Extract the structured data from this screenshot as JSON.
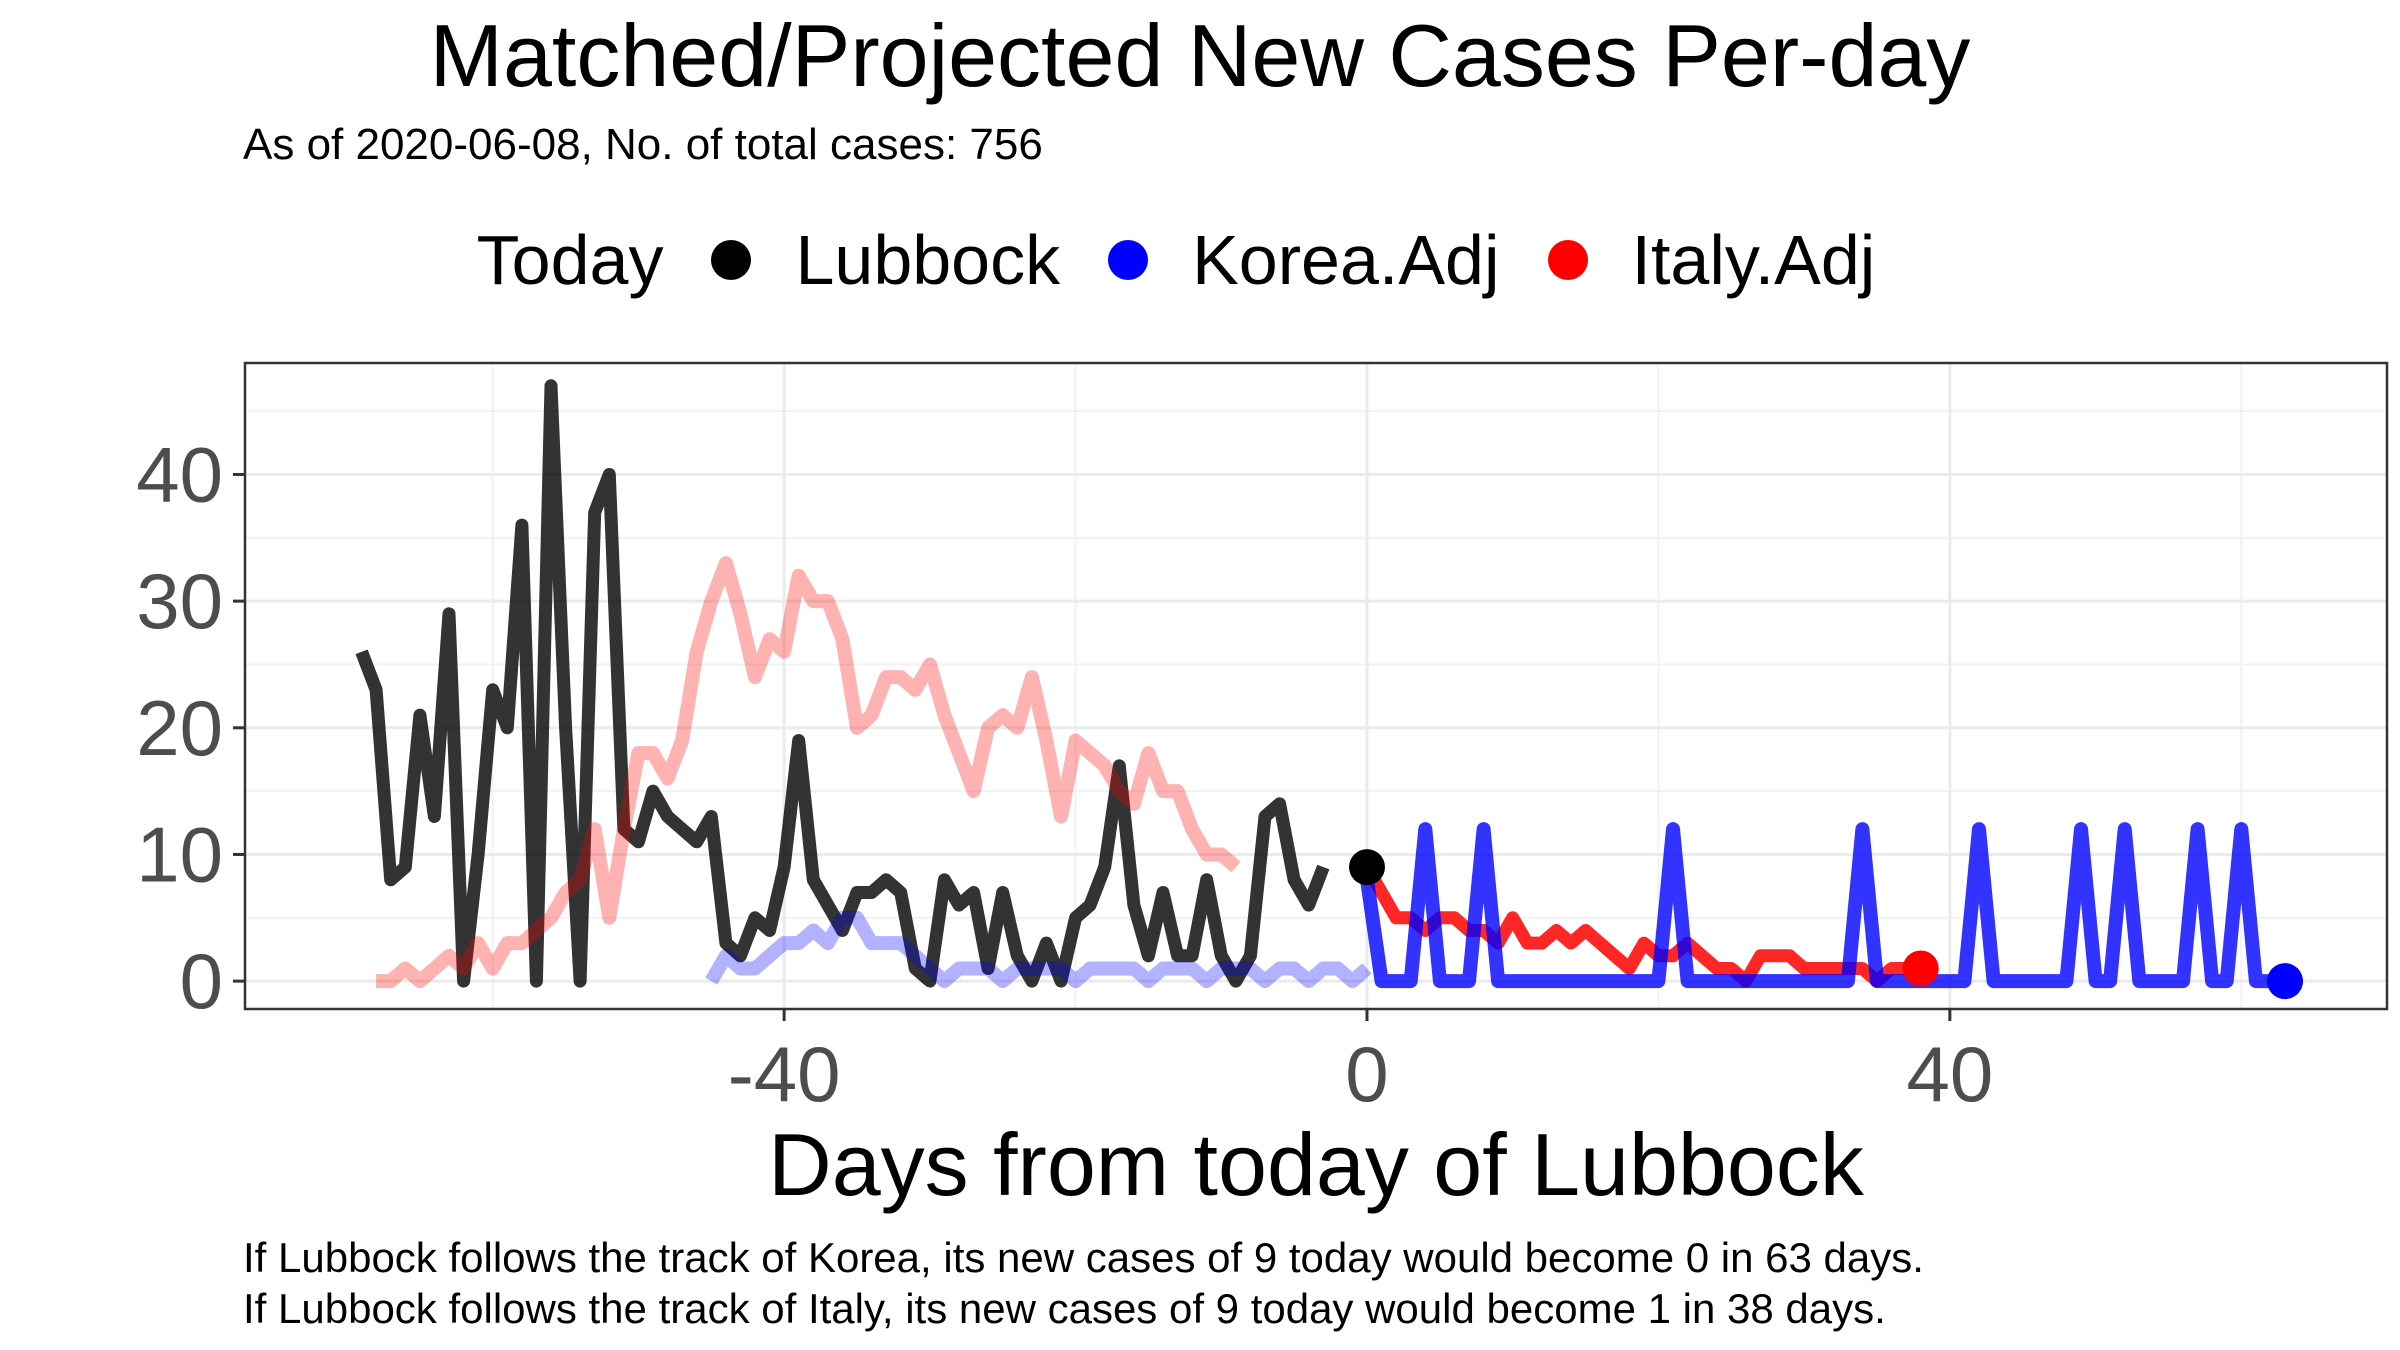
{
  "title": "Matched/Projected New Cases Per-day",
  "subtitle": "As of 2020-06-08, No. of total cases: 756",
  "legend": {
    "title": "Today",
    "items": [
      {
        "label": "Lubbock",
        "color": "#000000"
      },
      {
        "label": "Korea.Adj",
        "color": "#0000ff"
      },
      {
        "label": "Italy.Adj",
        "color": "#ff0000"
      }
    ]
  },
  "footnotes": [
    "If Lubbock follows the track of Korea, its new cases of 9 today would become 0 in 63 days.",
    "If Lubbock follows the track of Italy, its new cases of 9 today would become 1 in 38 days."
  ],
  "chart_data": {
    "type": "line",
    "title": "Matched/Projected New Cases Per-day",
    "xlabel": "Days from today of Lubbock",
    "ylabel": "",
    "xlim": [
      -77,
      70
    ],
    "ylim": [
      -2.2,
      48.8
    ],
    "x_ticks": [
      -40,
      0,
      40
    ],
    "y_ticks": [
      0,
      10,
      20,
      30,
      40
    ],
    "grid": true,
    "legend_position": "top",
    "series": [
      {
        "name": "Lubbock",
        "color": "#000000",
        "role": "history",
        "x_start": -69,
        "values": [
          26,
          23,
          8,
          9,
          21,
          13,
          29,
          0,
          10,
          23,
          20,
          36,
          0,
          47,
          20,
          0,
          37,
          40,
          12,
          11,
          15,
          13,
          12,
          11,
          13,
          3,
          2,
          5,
          4,
          9,
          19,
          8,
          6,
          4,
          7,
          7,
          8,
          7,
          1,
          0,
          8,
          6,
          7,
          1,
          7,
          2,
          0,
          3,
          0,
          5,
          6,
          9,
          17,
          6,
          2,
          7,
          2,
          2,
          8,
          2,
          0,
          2,
          13,
          14,
          8,
          6,
          9
        ]
      },
      {
        "name": "Italy.Adj",
        "color": "#ff0000",
        "role": "history",
        "x_start": -68,
        "values": [
          0,
          0,
          1,
          0,
          1,
          2,
          1,
          3,
          1,
          3,
          3,
          4,
          5,
          7,
          8,
          12,
          5,
          12,
          18,
          18,
          16,
          19,
          26,
          30,
          33,
          29,
          24,
          27,
          26,
          32,
          30,
          30,
          27,
          20,
          21,
          24,
          24,
          23,
          25,
          21,
          18,
          15,
          20,
          21,
          20,
          24,
          19,
          13,
          19,
          18,
          17,
          15,
          14,
          18,
          15,
          15,
          12,
          10,
          10,
          9
        ]
      },
      {
        "name": "Korea.Adj",
        "color": "#0000ff",
        "role": "history",
        "x_start": -45,
        "values": [
          0,
          2,
          1,
          1,
          2,
          3,
          3,
          4,
          3,
          5,
          5,
          3,
          3,
          3,
          2,
          1,
          0,
          1,
          1,
          1,
          0,
          1,
          1,
          1,
          1,
          0,
          1,
          1,
          1,
          1,
          0,
          1,
          1,
          1,
          0,
          1,
          1,
          1,
          0,
          1,
          1,
          0,
          1,
          1,
          0,
          1
        ]
      },
      {
        "name": "Italy.Adj",
        "color": "#ff0000",
        "role": "projection",
        "x_start": 0,
        "values": [
          9,
          7,
          5,
          5,
          4,
          5,
          5,
          4,
          4,
          3,
          5,
          3,
          3,
          4,
          3,
          4,
          3,
          2,
          1,
          3,
          2,
          2,
          3,
          2,
          1,
          1,
          0,
          2,
          2,
          2,
          1,
          1,
          1,
          1,
          1,
          0,
          1,
          1,
          1
        ]
      },
      {
        "name": "Korea.Adj",
        "color": "#0000ff",
        "role": "projection",
        "x_start": 0,
        "values": [
          8,
          0,
          0,
          0,
          12,
          0,
          0,
          0,
          12,
          0,
          0,
          0,
          0,
          0,
          0,
          0,
          0,
          0,
          0,
          0,
          0,
          12,
          0,
          0,
          0,
          0,
          0,
          0,
          0,
          0,
          0,
          0,
          0,
          0,
          12,
          0,
          0,
          0,
          0,
          0,
          0,
          0,
          12,
          0,
          0,
          0,
          0,
          0,
          0,
          12,
          0,
          0,
          12,
          0,
          0,
          0,
          0,
          12,
          0,
          0,
          12,
          0,
          0,
          0
        ]
      }
    ],
    "today_points": [
      {
        "series": "Lubbock",
        "x": 0,
        "y": 9
      },
      {
        "series": "Italy.Adj",
        "x": 38,
        "y": 1
      },
      {
        "series": "Korea.Adj",
        "x": 63,
        "y": 0
      }
    ]
  }
}
